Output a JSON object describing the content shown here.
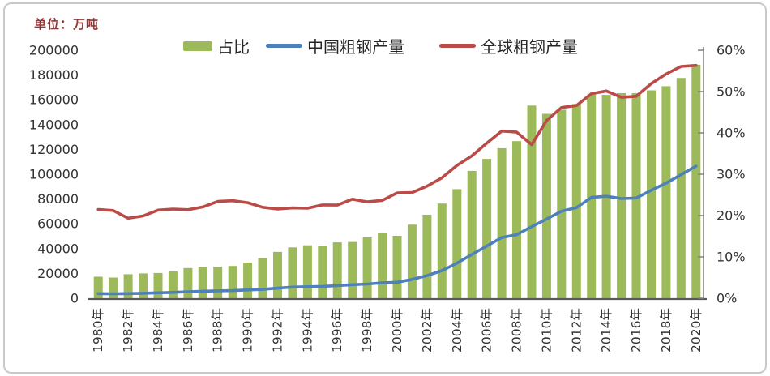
{
  "page": {
    "background": "#ffffff",
    "frame_border_color": "#c9c9c9"
  },
  "chart_data": {
    "type": "bar",
    "subtype": "combo-bar-line-dual-axis",
    "title": "",
    "unit_label": "单位：万吨",
    "legend_position": "top",
    "grid": false,
    "years": [
      1980,
      1981,
      1982,
      1983,
      1984,
      1985,
      1986,
      1987,
      1988,
      1989,
      1990,
      1991,
      1992,
      1993,
      1994,
      1995,
      1996,
      1997,
      1998,
      1999,
      2000,
      2001,
      2002,
      2003,
      2004,
      2005,
      2006,
      2007,
      2008,
      2009,
      2010,
      2011,
      2012,
      2013,
      2014,
      2015,
      2016,
      2017,
      2018,
      2019,
      2020
    ],
    "x_tick_labels": [
      "1980年",
      "1982年",
      "1984年",
      "1986年",
      "1988年",
      "1990年",
      "1992年",
      "1994年",
      "1996年",
      "1998年",
      "2000年",
      "2002年",
      "2004年",
      "2006年",
      "2008年",
      "2010年",
      "2012年",
      "2014年",
      "2016年",
      "2018年",
      "2020年"
    ],
    "series": [
      {
        "name": "占比",
        "type": "bar",
        "axis": "right",
        "unit": "%",
        "color": "#9CBA5A",
        "values": [
          5.2,
          5.0,
          5.8,
          6.0,
          6.1,
          6.5,
          7.3,
          7.6,
          7.6,
          7.8,
          8.6,
          9.7,
          11.2,
          12.3,
          12.8,
          12.7,
          13.5,
          13.6,
          14.7,
          15.7,
          15.1,
          17.8,
          20.2,
          22.9,
          26.4,
          30.8,
          33.7,
          36.3,
          38.0,
          46.6,
          44.6,
          45.6,
          47.0,
          49.3,
          49.2,
          49.6,
          49.6,
          50.3,
          51.3,
          53.3,
          56.5
        ]
      },
      {
        "name": "中国粗钢产量",
        "type": "line",
        "axis": "left",
        "unit": "万吨",
        "color": "#4E80BB",
        "values": [
          3712,
          3560,
          3716,
          4002,
          4347,
          4679,
          5221,
          5628,
          5943,
          6159,
          6635,
          7100,
          8094,
          8956,
          9261,
          9536,
          10124,
          10894,
          11459,
          12426,
          12850,
          15163,
          18225,
          22234,
          28291,
          35324,
          42102,
          48929,
          51234,
          57707,
          63874,
          70197,
          73104,
          81314,
          82231,
          80383,
          80761,
          87074,
          92826,
          99634,
          106477
        ]
      },
      {
        "name": "全球粗钢产量",
        "type": "line",
        "axis": "left",
        "unit": "万吨",
        "color": "#BA4B47",
        "values": [
          71600,
          70740,
          64540,
          66340,
          71040,
          71880,
          71400,
          73590,
          78010,
          78630,
          77040,
          73360,
          71970,
          72790,
          72540,
          75240,
          75090,
          79890,
          77730,
          78900,
          85000,
          85220,
          90390,
          97100,
          107140,
          114790,
          125120,
          134830,
          133930,
          123870,
          143330,
          153810,
          155400,
          165000,
          167100,
          162000,
          162860,
          173000,
          180860,
          186900,
          187800
        ]
      }
    ],
    "left_axis": {
      "min": 0,
      "max": 200000,
      "step": 20000,
      "tick_labels": [
        "0",
        "20000",
        "40000",
        "60000",
        "80000",
        "100000",
        "120000",
        "140000",
        "160000",
        "180000",
        "200000"
      ]
    },
    "right_axis": {
      "min": 0,
      "max": 60,
      "step": 10,
      "tick_labels": [
        "0%",
        "10%",
        "20%",
        "30%",
        "40%",
        "50%",
        "60%"
      ]
    },
    "axis_text_color": "#333333",
    "baseline_color": "#595959",
    "right_axis_line_color": "#808080"
  }
}
